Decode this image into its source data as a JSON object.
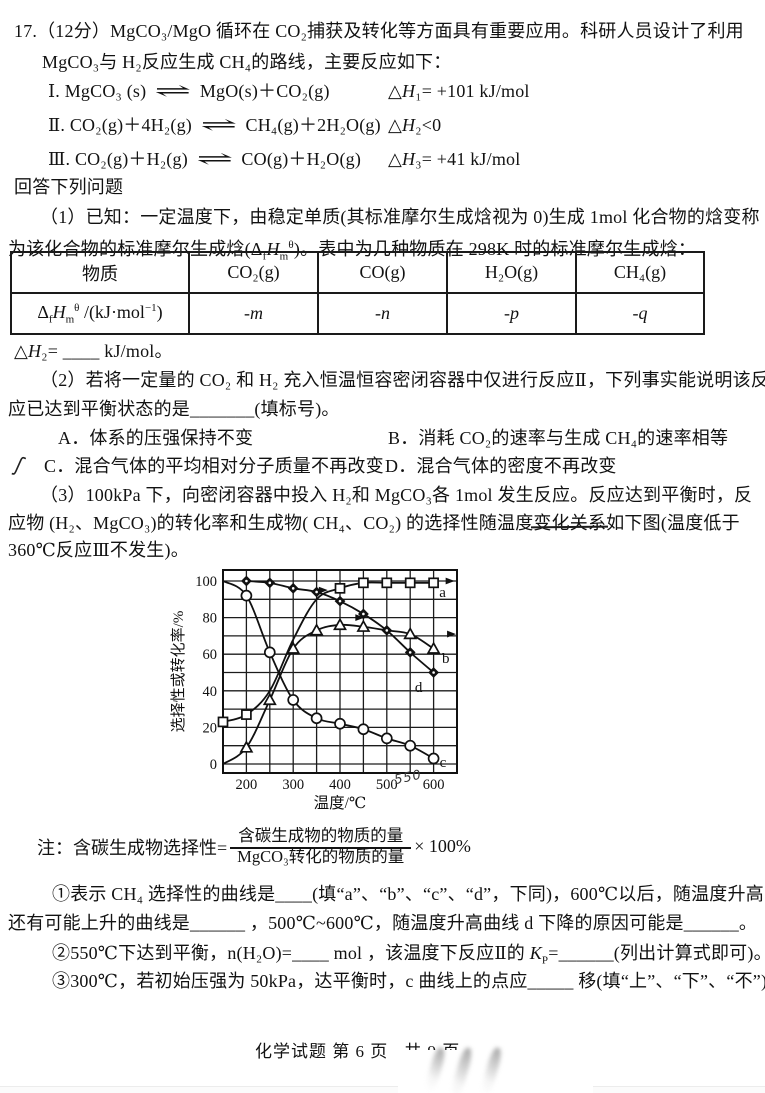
{
  "question": {
    "line1": "17.（12分）MgCO₃/MgO 循环在 CO₂捕获及转化等方面具有重要应用。科研人员设计了利用",
    "line2": "MgCO₃与 H₂反应生成 CH₄的路线，主要反应如下：",
    "reactions": [
      {
        "eq": "Ⅰ. MgCO₃ (s) <span class='harpoon'>⇌</span> MgO(s)＋CO₂(g)",
        "dh": "△<i>H</i>₁= +101 kJ/mol"
      },
      {
        "eq": "Ⅱ. CO₂(g)＋4H₂(g) <span class='harpoon'>⇌</span> CH₄(g)＋2H₂O(g)",
        "dh": "△<i>H</i>₂&lt;0"
      },
      {
        "eq": "Ⅲ. CO₂(g)＋H₂(g) <span class='harpoon'>⇌</span> CO(g)＋H₂O(g)",
        "dh": "△<i>H</i>₃= +41 kJ/mol"
      }
    ],
    "answer_heading": "回答下列问题"
  },
  "part1": {
    "line1": "（1）已知：一定温度下，由稳定单质(其标准摩尔生成焓视为 0)生成 1mol 化合物的焓变称",
    "line2": "为该化合物的标准摩尔生成焓(Δ<sub>f</sub><i>H</i><sub>m</sub><sup>θ</sup>)。表中为几种物质在 298K 时的标准摩尔生成焓：",
    "table": {
      "headers": [
        "物质",
        "CO₂(g)",
        "CO(g)",
        "H₂O(g)",
        "CH₄(g)"
      ],
      "row_label": "Δ<sub>f</sub><i>H</i><sub>m</sub><sup>θ</sup> /(kJ·mol<sup>−1</sup>)",
      "row_values": [
        "-m",
        "-n",
        "-p",
        "-q"
      ]
    },
    "dh2_line": "△<i>H</i>₂= ____ kJ/mol。"
  },
  "part2": {
    "line1": "（2）若将一定量的 CO₂ 和 H₂ 充入恒温恒容密闭容器中仅进行反应Ⅱ，下列事实能说明该反",
    "line2": "应已达到平衡状态的是_______(填标号)。",
    "optionA": "A．体系的压强保持不变",
    "optionB": "B．消耗 CO₂的速率与生成 CH₄的速率相等",
    "optionC": "C．混合气体的平均相对分子质量不再改变",
    "optionD": "D．混合气体的密度不再改变"
  },
  "part3": {
    "line1": "（3）100kPa 下，向密闭容器中投入 H₂和 MgCO₃各 1mol 发生反应。反应达到平衡时，反",
    "line2a": "应物 (H₂、MgCO₃)的转化率和生成物( CH₄、CO₂) 的选择性随温度",
    "line2b": "变化关系",
    "line2c": "如下图(温度低于",
    "line3": "360℃反应Ⅲ不发生)。"
  },
  "note": {
    "prefix": "注：含碳生成物选择性=",
    "numerator": "含碳生成物的物质的量",
    "denominator": "MgCO₃转化的物质的量",
    "suffix": "× 100%"
  },
  "subquestions": {
    "c1_line1": "①表示 CH₄ 选择性的曲线是____(填“a”、“b”、“c”、“d”，下同)，600℃以后，随温度升高，",
    "c1_line2": "还有可能上升的曲线是______ ，500℃~600℃，随温度升高曲线 d 下降的原因可能是______。",
    "c2": "②550℃下达到平衡，n(H₂O)=____ mol ，该温度下反应Ⅱ的 <i>K</i><sub>P</sub>=______(列出计算式即可)。",
    "c3": "③300℃，若初始压强为 50kPa，达平衡时，c 曲线上的点应_____ 移(填“上”、“下”、“不”)。"
  },
  "footer": {
    "part1": "化学试题  第 6 页",
    "part2": "共 9 页"
  },
  "icons": {
    "pen_mark": "ʃ"
  },
  "chart_data": {
    "type": "line",
    "title": "",
    "xlabel": "温度/℃",
    "ylabel": "选择性或转化率/%",
    "xlim": [
      150,
      650
    ],
    "ylim": [
      0,
      100
    ],
    "xticks": [
      200,
      300,
      400,
      500,
      600
    ],
    "yticks": [
      0,
      20,
      40,
      60,
      80,
      100
    ],
    "grid": true,
    "legend_position": "inline-labels",
    "series": [
      {
        "name": "a",
        "marker": "square",
        "x": [
          150,
          200,
          250,
          300,
          350,
          400,
          450,
          500,
          550,
          600
        ],
        "y": [
          23,
          27,
          40,
          68,
          90,
          96,
          99,
          99,
          99,
          99
        ],
        "marker_at": [
          150,
          200,
          400,
          450,
          500,
          550,
          600
        ]
      },
      {
        "name": "b",
        "marker": "triangle",
        "x": [
          150,
          200,
          250,
          300,
          350,
          400,
          450,
          500,
          550,
          600
        ],
        "y": [
          0,
          9,
          35,
          63,
          73,
          76,
          75,
          73,
          71,
          63
        ],
        "marker_at": [
          200,
          250,
          300,
          350,
          400,
          450,
          550,
          600
        ]
      },
      {
        "name": "c",
        "marker": "circle",
        "x": [
          150,
          200,
          250,
          300,
          350,
          400,
          450,
          500,
          550,
          600
        ],
        "y": [
          100,
          92,
          61,
          35,
          25,
          22,
          19,
          14,
          10,
          3
        ],
        "marker_at": [
          200,
          250,
          300,
          350,
          400,
          450,
          500,
          550,
          600
        ]
      },
      {
        "name": "d",
        "marker": "diamond",
        "x": [
          200,
          250,
          300,
          350,
          400,
          450,
          500,
          550,
          600
        ],
        "y": [
          100,
          99,
          96,
          94,
          89,
          82,
          73,
          61,
          50
        ],
        "marker_at": [
          200,
          250,
          300,
          350,
          400,
          450,
          500,
          550,
          600
        ]
      }
    ],
    "labels": [
      {
        "text": "a",
        "x": 612,
        "y": 94
      },
      {
        "text": "b",
        "x": 618,
        "y": 58
      },
      {
        "text": "c",
        "x": 613,
        "y": 1
      },
      {
        "text": "d",
        "x": 560,
        "y": 42
      }
    ],
    "pen_arrows": [
      {
        "x": 374,
        "y": 95
      },
      {
        "x": 452,
        "y": 80
      },
      {
        "x": 645,
        "y": 100
      },
      {
        "x": 648,
        "y": 71
      }
    ],
    "handwriting": {
      "text": "550",
      "x": 518,
      "y": -11
    }
  }
}
